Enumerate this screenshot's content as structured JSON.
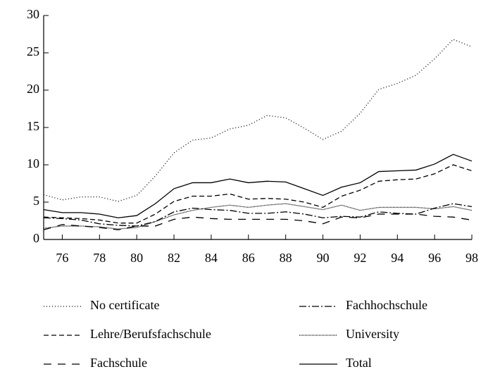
{
  "chart_data": {
    "type": "line",
    "x": [
      75,
      76,
      77,
      78,
      79,
      80,
      81,
      82,
      83,
      84,
      85,
      86,
      87,
      88,
      89,
      90,
      91,
      92,
      93,
      94,
      95,
      96,
      97,
      98
    ],
    "xlim": [
      75,
      98
    ],
    "xticks": [
      76,
      78,
      80,
      82,
      84,
      86,
      88,
      90,
      92,
      94,
      96,
      98
    ],
    "ylim": [
      0,
      30
    ],
    "yticks": [
      0,
      5,
      10,
      15,
      20,
      25,
      30
    ],
    "series": [
      {
        "name": "No certificate",
        "color": "#000",
        "dash": "1,3",
        "values": [
          6.0,
          5.3,
          5.7,
          5.7,
          5.1,
          5.9,
          8.5,
          11.6,
          13.3,
          13.6,
          14.8,
          15.3,
          16.6,
          16.3,
          14.9,
          13.4,
          14.5,
          16.9,
          20.1,
          20.9,
          22.0,
          24.2,
          26.8,
          25.8
        ]
      },
      {
        "name": "Lehre/Berufsfachschule",
        "color": "#000",
        "dash": "7,4",
        "values": [
          3.0,
          2.9,
          2.8,
          2.6,
          2.2,
          2.2,
          3.4,
          5.1,
          5.8,
          5.8,
          6.1,
          5.4,
          5.5,
          5.4,
          5.0,
          4.3,
          5.8,
          6.6,
          7.8,
          8.0,
          8.1,
          8.8,
          10.0,
          9.2
        ]
      },
      {
        "name": "Fachschule",
        "color": "#000",
        "dash": "11,9",
        "values": [
          1.3,
          2.0,
          1.8,
          1.6,
          1.3,
          1.8,
          1.8,
          2.7,
          3.0,
          2.8,
          2.7,
          2.7,
          2.7,
          2.7,
          2.5,
          2.1,
          3.0,
          2.9,
          3.4,
          3.4,
          3.4,
          3.1,
          3.0,
          2.6
        ]
      },
      {
        "name": "Fachhochschule",
        "color": "#000",
        "dash": "10,3,2,3",
        "values": [
          2.9,
          2.8,
          2.6,
          2.1,
          1.9,
          1.8,
          2.4,
          3.7,
          4.2,
          4.0,
          3.9,
          3.5,
          3.5,
          3.7,
          3.4,
          2.9,
          3.1,
          3.0,
          3.7,
          3.5,
          3.4,
          4.2,
          4.8,
          4.4
        ]
      },
      {
        "name": "University",
        "color": "#000",
        "dash": "1,1",
        "values": [
          1.5,
          1.8,
          1.8,
          1.7,
          1.4,
          1.6,
          2.4,
          3.3,
          3.9,
          4.3,
          4.6,
          4.3,
          4.6,
          4.8,
          4.4,
          4.0,
          4.6,
          3.9,
          4.3,
          4.3,
          4.3,
          4.1,
          4.4,
          3.9
        ]
      },
      {
        "name": "Total",
        "color": "#000",
        "dash": "",
        "values": [
          4.0,
          3.6,
          3.6,
          3.4,
          2.9,
          3.2,
          4.8,
          6.8,
          7.6,
          7.6,
          8.1,
          7.6,
          7.8,
          7.7,
          6.8,
          5.9,
          7.0,
          7.6,
          9.1,
          9.2,
          9.3,
          10.1,
          11.4,
          10.5
        ]
      }
    ]
  }
}
